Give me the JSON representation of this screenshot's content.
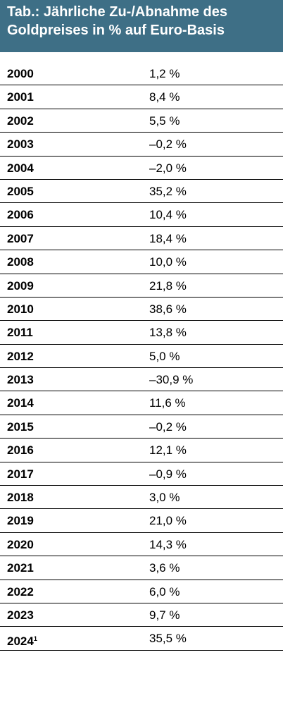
{
  "header": {
    "title_line1": "Tab.: Jährliche Zu-/Abnahme des",
    "title_line2": "Goldpreises in % auf Euro-Basis",
    "background_color": "#3e6f86"
  },
  "table": {
    "rows": [
      {
        "year": "2000",
        "value": "1,2 %"
      },
      {
        "year": "2001",
        "value": "8,4 %"
      },
      {
        "year": "2002",
        "value": "5,5 %"
      },
      {
        "year": "2003",
        "value": "–0,2 %"
      },
      {
        "year": "2004",
        "value": "–2,0 %"
      },
      {
        "year": "2005",
        "value": "35,2 %"
      },
      {
        "year": "2006",
        "value": "10,4 %"
      },
      {
        "year": "2007",
        "value": "18,4 %"
      },
      {
        "year": "2008",
        "value": "10,0 %"
      },
      {
        "year": "2009",
        "value": "21,8 %"
      },
      {
        "year": "2010",
        "value": "38,6 %"
      },
      {
        "year": "2011",
        "value": "13,8 %"
      },
      {
        "year": "2012",
        "value": "5,0 %"
      },
      {
        "year": "2013",
        "value": "–30,9 %"
      },
      {
        "year": "2014",
        "value": "11,6 %"
      },
      {
        "year": "2015",
        "value": "–0,2 %"
      },
      {
        "year": "2016",
        "value": "12,1 %"
      },
      {
        "year": "2017",
        "value": "–0,9 %"
      },
      {
        "year": "2018",
        "value": "3,0 %"
      },
      {
        "year": "2019",
        "value": "21,0 %"
      },
      {
        "year": "2020",
        "value": "14,3 %"
      },
      {
        "year": "2021",
        "value": "3,6 %"
      },
      {
        "year": "2022",
        "value": "6,0 %"
      },
      {
        "year": "2023",
        "value": "9,7 %"
      },
      {
        "year": "2024",
        "footnote_mark": "1",
        "value": "35,5 %"
      }
    ]
  }
}
